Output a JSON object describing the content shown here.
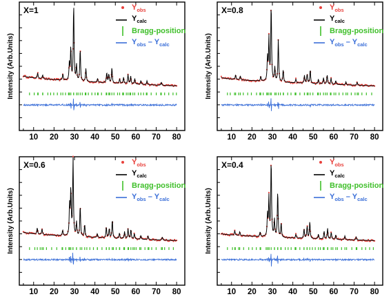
{
  "colors": {
    "observed": "#e8413c",
    "calculated": "#000000",
    "bragg": "#3fbf2a",
    "difference": "#3a6ed8"
  },
  "legend": {
    "observed": {
      "main": "Y",
      "sub": "obs"
    },
    "calculated": {
      "main": "Y",
      "sub": "calc"
    },
    "bragg": "Bragg-position",
    "difference": {
      "left_main": "Y",
      "left_sub": "obs",
      "sep": " – ",
      "right_main": "Y",
      "right_sub": "calc"
    }
  },
  "chart_data": [
    {
      "type": "line",
      "title": "X=1",
      "ylabel": "Intensity (Arb.Units)",
      "xlabel": "",
      "xlim": [
        3,
        84
      ],
      "x_ticks": [
        10,
        20,
        30,
        40,
        50,
        60,
        70,
        80
      ],
      "x_tick_labels": [
        "10",
        "20",
        "30",
        "40",
        "50",
        "60",
        "70",
        "80"
      ],
      "y_units": "arbitrary",
      "grid": false,
      "legend_position": "top-right",
      "x_range": [
        5,
        80
      ],
      "background_start": 0.18,
      "background_end": 0.05,
      "peaks": [
        {
          "x": 12.0,
          "y": 0.07
        },
        {
          "x": 14.4,
          "y": 0.05
        },
        {
          "x": 24.3,
          "y": 0.08
        },
        {
          "x": 27.5,
          "y": 0.22
        },
        {
          "x": 28.2,
          "y": 0.42
        },
        {
          "x": 29.6,
          "y": 1.0
        },
        {
          "x": 31.0,
          "y": 0.2
        },
        {
          "x": 32.8,
          "y": 0.42
        },
        {
          "x": 35.6,
          "y": 0.17
        },
        {
          "x": 41.3,
          "y": 0.05
        },
        {
          "x": 45.8,
          "y": 0.13
        },
        {
          "x": 46.8,
          "y": 0.11
        },
        {
          "x": 48.3,
          "y": 0.2
        },
        {
          "x": 52.1,
          "y": 0.06
        },
        {
          "x": 54.0,
          "y": 0.08
        },
        {
          "x": 56.2,
          "y": 0.12
        },
        {
          "x": 57.5,
          "y": 0.1
        },
        {
          "x": 59.5,
          "y": 0.07
        },
        {
          "x": 62.5,
          "y": 0.05
        },
        {
          "x": 65.5,
          "y": 0.05
        },
        {
          "x": 72.5,
          "y": 0.04
        }
      ]
    },
    {
      "type": "line",
      "title": "X=0.8",
      "ylabel": "Intensity (Arb.Units)",
      "xlabel": "",
      "xlim": [
        3,
        84
      ],
      "x_ticks": [
        10,
        20,
        30,
        40,
        50,
        60,
        70,
        80
      ],
      "x_tick_labels": [
        "10",
        "20",
        "30",
        "40",
        "50",
        "60",
        "70",
        "80"
      ],
      "y_units": "arbitrary",
      "grid": false,
      "legend_position": "top-right",
      "x_range": [
        5,
        80
      ],
      "background_start": 0.16,
      "background_end": 0.05,
      "peaks": [
        {
          "x": 12.0,
          "y": 0.06
        },
        {
          "x": 14.3,
          "y": 0.05
        },
        {
          "x": 24.3,
          "y": 0.06
        },
        {
          "x": 27.6,
          "y": 0.3
        },
        {
          "x": 28.3,
          "y": 0.55
        },
        {
          "x": 29.4,
          "y": 1.0
        },
        {
          "x": 31.2,
          "y": 0.18
        },
        {
          "x": 32.9,
          "y": 0.55
        },
        {
          "x": 35.3,
          "y": 0.16
        },
        {
          "x": 41.5,
          "y": 0.05
        },
        {
          "x": 45.7,
          "y": 0.1
        },
        {
          "x": 47.0,
          "y": 0.12
        },
        {
          "x": 48.5,
          "y": 0.18
        },
        {
          "x": 52.5,
          "y": 0.06
        },
        {
          "x": 55.0,
          "y": 0.08
        },
        {
          "x": 56.8,
          "y": 0.12
        },
        {
          "x": 58.7,
          "y": 0.08
        },
        {
          "x": 61.0,
          "y": 0.05
        },
        {
          "x": 66.0,
          "y": 0.04
        },
        {
          "x": 71.5,
          "y": 0.04
        }
      ]
    },
    {
      "type": "line",
      "title": "X=0.6",
      "ylabel": "Intensity (Arb.Units)",
      "xlabel": "",
      "xlim": [
        3,
        84
      ],
      "x_ticks": [
        10,
        20,
        30,
        40,
        50,
        60,
        70,
        80
      ],
      "x_tick_labels": [
        "10",
        "20",
        "30",
        "40",
        "50",
        "60",
        "70",
        "80"
      ],
      "y_units": "arbitrary",
      "grid": false,
      "legend_position": "top-right",
      "x_range": [
        5,
        80
      ],
      "background_start": 0.16,
      "background_end": 0.05,
      "peaks": [
        {
          "x": 11.8,
          "y": 0.08
        },
        {
          "x": 14.1,
          "y": 0.07
        },
        {
          "x": 24.2,
          "y": 0.07
        },
        {
          "x": 27.6,
          "y": 0.38
        },
        {
          "x": 28.2,
          "y": 0.58
        },
        {
          "x": 29.3,
          "y": 1.0
        },
        {
          "x": 31.0,
          "y": 0.18
        },
        {
          "x": 32.8,
          "y": 0.4
        },
        {
          "x": 35.0,
          "y": 0.16
        },
        {
          "x": 41.2,
          "y": 0.05
        },
        {
          "x": 45.6,
          "y": 0.14
        },
        {
          "x": 47.0,
          "y": 0.12
        },
        {
          "x": 48.5,
          "y": 0.24
        },
        {
          "x": 52.0,
          "y": 0.07
        },
        {
          "x": 54.5,
          "y": 0.09
        },
        {
          "x": 56.2,
          "y": 0.13
        },
        {
          "x": 57.6,
          "y": 0.12
        },
        {
          "x": 59.3,
          "y": 0.07
        },
        {
          "x": 62.5,
          "y": 0.05
        },
        {
          "x": 66.0,
          "y": 0.05
        },
        {
          "x": 73.0,
          "y": 0.04
        }
      ]
    },
    {
      "type": "line",
      "title": "X=0.4",
      "ylabel": "Intensity (Arb.Units)",
      "xlabel": "",
      "xlim": [
        3,
        84
      ],
      "x_ticks": [
        10,
        20,
        30,
        40,
        50,
        60,
        70,
        80
      ],
      "x_tick_labels": [
        "10",
        "20",
        "30",
        "40",
        "50",
        "60",
        "70",
        "80"
      ],
      "y_units": "arbitrary",
      "grid": false,
      "legend_position": "top-right",
      "x_range": [
        5,
        80
      ],
      "background_start": 0.14,
      "background_end": 0.05,
      "peaks": [
        {
          "x": 11.6,
          "y": 0.06
        },
        {
          "x": 14.0,
          "y": 0.05
        },
        {
          "x": 24.0,
          "y": 0.06
        },
        {
          "x": 27.6,
          "y": 0.28
        },
        {
          "x": 28.3,
          "y": 0.5
        },
        {
          "x": 29.4,
          "y": 1.0
        },
        {
          "x": 31.0,
          "y": 0.22
        },
        {
          "x": 32.6,
          "y": 0.6
        },
        {
          "x": 34.3,
          "y": 0.18
        },
        {
          "x": 41.5,
          "y": 0.05
        },
        {
          "x": 45.5,
          "y": 0.12
        },
        {
          "x": 47.0,
          "y": 0.16
        },
        {
          "x": 48.3,
          "y": 0.22
        },
        {
          "x": 52.5,
          "y": 0.06
        },
        {
          "x": 55.3,
          "y": 0.1
        },
        {
          "x": 57.0,
          "y": 0.14
        },
        {
          "x": 58.8,
          "y": 0.09
        },
        {
          "x": 61.0,
          "y": 0.06
        },
        {
          "x": 65.5,
          "y": 0.05
        },
        {
          "x": 71.0,
          "y": 0.04
        }
      ]
    }
  ]
}
